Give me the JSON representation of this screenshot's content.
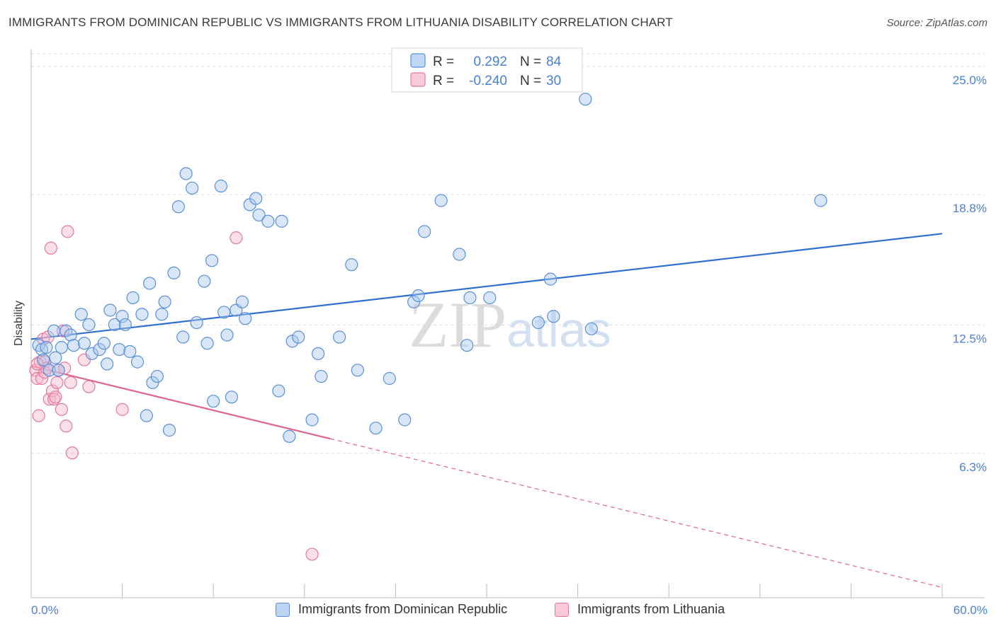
{
  "title": "IMMIGRANTS FROM DOMINICAN REPUBLIC VS IMMIGRANTS FROM LITHUANIA DISABILITY CORRELATION CHART",
  "source": "Source: ZipAtlas.com",
  "watermark": "ZIPatlas",
  "colors": {
    "blue_fill": "#a9c8f0",
    "blue_stroke": "#5b8fd6",
    "blue_line": "#2f6fd0",
    "pink_fill": "#f7b8cc",
    "pink_stroke": "#e07a9b",
    "pink_line": "#e0628e",
    "tick_label": "#4a7fd4",
    "grid": "#dcdcdc"
  },
  "legend": {
    "rows": [
      {
        "r_label": "R =",
        "r_value": "0.292",
        "n_label": "N =",
        "n_value": "84"
      },
      {
        "r_label": "R =",
        "r_value": "-0.240",
        "n_label": "N =",
        "n_value": "30"
      }
    ]
  },
  "chart_data": {
    "type": "scatter",
    "xlabel": "",
    "ylabel": "Disability",
    "xlim": [
      0,
      60
    ],
    "ylim": [
      0,
      26.5
    ],
    "x_tick_labels": [
      "0.0%",
      "60.0%"
    ],
    "y_ticks": [
      6.3,
      12.5,
      18.8,
      25.0
    ],
    "y_tick_labels": [
      "6.3%",
      "12.5%",
      "18.8%",
      "25.0%"
    ],
    "grid": "horizontal dashed",
    "legend_position": "top-center",
    "series": [
      {
        "name": "Immigrants from Dominican Republic",
        "color": "blue",
        "trend": {
          "x": [
            0,
            60
          ],
          "y": [
            12.5,
            17.6
          ],
          "dashed_from": null
        },
        "points": [
          [
            0.5,
            12.2
          ],
          [
            0.7,
            12.0
          ],
          [
            1.0,
            12.1
          ],
          [
            0.8,
            11.5
          ],
          [
            1.2,
            11.0
          ],
          [
            1.5,
            12.9
          ],
          [
            1.6,
            11.6
          ],
          [
            1.8,
            11.0
          ],
          [
            2.0,
            12.1
          ],
          [
            2.3,
            12.9
          ],
          [
            2.6,
            12.7
          ],
          [
            2.8,
            12.2
          ],
          [
            3.3,
            13.7
          ],
          [
            3.5,
            12.3
          ],
          [
            3.8,
            13.2
          ],
          [
            4.0,
            11.8
          ],
          [
            4.5,
            12.0
          ],
          [
            4.8,
            12.3
          ],
          [
            5.0,
            11.3
          ],
          [
            5.2,
            13.9
          ],
          [
            5.5,
            13.2
          ],
          [
            5.8,
            12.0
          ],
          [
            6.0,
            13.6
          ],
          [
            6.2,
            13.2
          ],
          [
            6.5,
            11.9
          ],
          [
            6.7,
            14.5
          ],
          [
            7.0,
            11.4
          ],
          [
            7.3,
            13.7
          ],
          [
            7.6,
            8.8
          ],
          [
            7.8,
            15.2
          ],
          [
            8.0,
            10.4
          ],
          [
            8.3,
            10.7
          ],
          [
            8.6,
            13.7
          ],
          [
            8.8,
            14.3
          ],
          [
            9.1,
            8.1
          ],
          [
            9.4,
            15.7
          ],
          [
            9.7,
            18.9
          ],
          [
            10.0,
            12.6
          ],
          [
            10.2,
            20.5
          ],
          [
            10.6,
            19.8
          ],
          [
            10.9,
            13.3
          ],
          [
            11.4,
            15.3
          ],
          [
            11.6,
            12.3
          ],
          [
            11.9,
            16.3
          ],
          [
            12.0,
            9.5
          ],
          [
            12.5,
            19.9
          ],
          [
            12.7,
            13.8
          ],
          [
            12.9,
            12.7
          ],
          [
            13.2,
            9.7
          ],
          [
            13.5,
            13.9
          ],
          [
            13.9,
            14.3
          ],
          [
            14.1,
            13.5
          ],
          [
            14.4,
            19.0
          ],
          [
            14.8,
            19.3
          ],
          [
            15.0,
            18.5
          ],
          [
            15.6,
            18.2
          ],
          [
            16.5,
            18.2
          ],
          [
            16.3,
            10.0
          ],
          [
            17.0,
            7.8
          ],
          [
            17.2,
            12.4
          ],
          [
            17.6,
            12.6
          ],
          [
            18.5,
            8.6
          ],
          [
            18.9,
            11.8
          ],
          [
            19.1,
            10.7
          ],
          [
            20.3,
            12.6
          ],
          [
            21.1,
            16.1
          ],
          [
            21.5,
            11.0
          ],
          [
            22.7,
            8.2
          ],
          [
            23.6,
            10.6
          ],
          [
            24.6,
            8.6
          ],
          [
            25.2,
            14.3
          ],
          [
            25.5,
            14.6
          ],
          [
            25.9,
            17.7
          ],
          [
            27.0,
            19.2
          ],
          [
            28.2,
            16.6
          ],
          [
            28.7,
            12.2
          ],
          [
            28.9,
            14.5
          ],
          [
            30.2,
            14.5
          ],
          [
            33.4,
            13.3
          ],
          [
            34.2,
            15.4
          ],
          [
            34.4,
            13.6
          ],
          [
            36.5,
            24.1
          ],
          [
            36.9,
            13.0
          ],
          [
            52.0,
            19.2
          ]
        ]
      },
      {
        "name": "Immigrants from Lithuania",
        "color": "pink",
        "trend": {
          "x": [
            0,
            60
          ],
          "y": [
            11.2,
            0.5
          ],
          "dashed_from": 19.7
        },
        "points": [
          [
            0.3,
            11.0
          ],
          [
            0.4,
            10.6
          ],
          [
            0.5,
            8.8
          ],
          [
            0.6,
            11.4
          ],
          [
            0.7,
            10.6
          ],
          [
            0.8,
            12.5
          ],
          [
            0.9,
            11.4
          ],
          [
            0.9,
            10.9
          ],
          [
            1.0,
            11.1
          ],
          [
            1.1,
            12.6
          ],
          [
            1.2,
            9.6
          ],
          [
            1.3,
            16.9
          ],
          [
            1.4,
            10.0
          ],
          [
            1.5,
            9.6
          ],
          [
            1.6,
            9.7
          ],
          [
            1.7,
            10.4
          ],
          [
            1.8,
            11.0
          ],
          [
            2.0,
            9.1
          ],
          [
            2.1,
            12.9
          ],
          [
            2.2,
            11.1
          ],
          [
            2.3,
            8.3
          ],
          [
            2.4,
            17.7
          ],
          [
            2.6,
            10.4
          ],
          [
            2.7,
            7.0
          ],
          [
            3.5,
            11.5
          ],
          [
            3.8,
            10.2
          ],
          [
            6.0,
            9.1
          ],
          [
            13.5,
            17.4
          ],
          [
            18.5,
            2.1
          ],
          [
            0.4,
            11.3
          ]
        ]
      }
    ]
  }
}
